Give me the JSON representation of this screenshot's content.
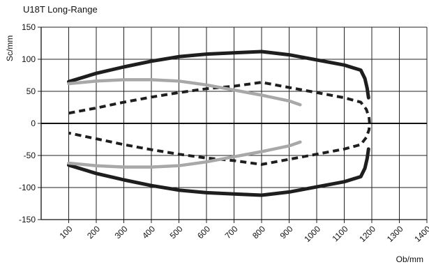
{
  "chart_data": {
    "type": "line",
    "title": "U18T Long-Range",
    "xlabel": "Ob/mm",
    "ylabel": "Sc/mm",
    "xlim": [
      0,
      1400
    ],
    "ylim": [
      -150,
      150
    ],
    "xticks": [
      100,
      200,
      300,
      400,
      500,
      600,
      700,
      800,
      900,
      1000,
      1100,
      1200,
      1300,
      1400
    ],
    "yticks": [
      150,
      100,
      50,
      0,
      -50,
      -100,
      -150
    ],
    "grid": true,
    "legend": "none",
    "series": [
      {
        "style": "solid-black",
        "color": "#1e1e1e",
        "segments": [
          [
            [
              100,
              65
            ],
            [
              200,
              78
            ],
            [
              300,
              88
            ],
            [
              400,
              97
            ],
            [
              500,
              104
            ],
            [
              600,
              108
            ],
            [
              700,
              110
            ],
            [
              800,
              112
            ],
            [
              900,
              107
            ],
            [
              1000,
              99
            ],
            [
              1100,
              91
            ],
            [
              1160,
              83
            ],
            [
              1175,
              70
            ],
            [
              1183,
              55
            ],
            [
              1188,
              40
            ]
          ],
          [
            [
              100,
              -65
            ],
            [
              200,
              -78
            ],
            [
              300,
              -88
            ],
            [
              400,
              -97
            ],
            [
              500,
              -104
            ],
            [
              600,
              -108
            ],
            [
              700,
              -110
            ],
            [
              800,
              -112
            ],
            [
              900,
              -107
            ],
            [
              1000,
              -99
            ],
            [
              1100,
              -91
            ],
            [
              1160,
              -83
            ],
            [
              1175,
              -70
            ],
            [
              1183,
              -55
            ],
            [
              1188,
              -40
            ]
          ]
        ]
      },
      {
        "style": "dashed-black",
        "color": "#1e1e1e",
        "segments": [
          [
            [
              100,
              16
            ],
            [
              200,
              24
            ],
            [
              300,
              33
            ],
            [
              400,
              41
            ],
            [
              500,
              48
            ],
            [
              600,
              54
            ],
            [
              700,
              58
            ],
            [
              800,
              64
            ],
            [
              900,
              56
            ],
            [
              1000,
              48
            ],
            [
              1100,
              40
            ],
            [
              1160,
              33
            ],
            [
              1180,
              22
            ],
            [
              1190,
              10
            ],
            [
              1192,
              0
            ],
            [
              1190,
              -10
            ],
            [
              1180,
              -22
            ],
            [
              1160,
              -33
            ],
            [
              1100,
              -40
            ],
            [
              1000,
              -48
            ],
            [
              900,
              -56
            ],
            [
              800,
              -64
            ],
            [
              700,
              -58
            ],
            [
              600,
              -54
            ],
            [
              500,
              -48
            ],
            [
              400,
              -41
            ],
            [
              300,
              -33
            ],
            [
              200,
              -24
            ],
            [
              100,
              -15
            ]
          ]
        ]
      },
      {
        "style": "solid-gray",
        "color": "#a8a8a8",
        "segments": [
          [
            [
              100,
              62
            ],
            [
              200,
              66
            ],
            [
              300,
              68
            ],
            [
              400,
              68
            ],
            [
              500,
              66
            ],
            [
              600,
              60
            ],
            [
              700,
              52
            ],
            [
              800,
              44
            ],
            [
              900,
              35
            ],
            [
              940,
              29
            ]
          ],
          [
            [
              100,
              -62
            ],
            [
              200,
              -66
            ],
            [
              300,
              -68
            ],
            [
              400,
              -68
            ],
            [
              500,
              -66
            ],
            [
              600,
              -60
            ],
            [
              700,
              -52
            ],
            [
              800,
              -44
            ],
            [
              900,
              -35
            ],
            [
              940,
              -29
            ]
          ]
        ]
      }
    ]
  }
}
